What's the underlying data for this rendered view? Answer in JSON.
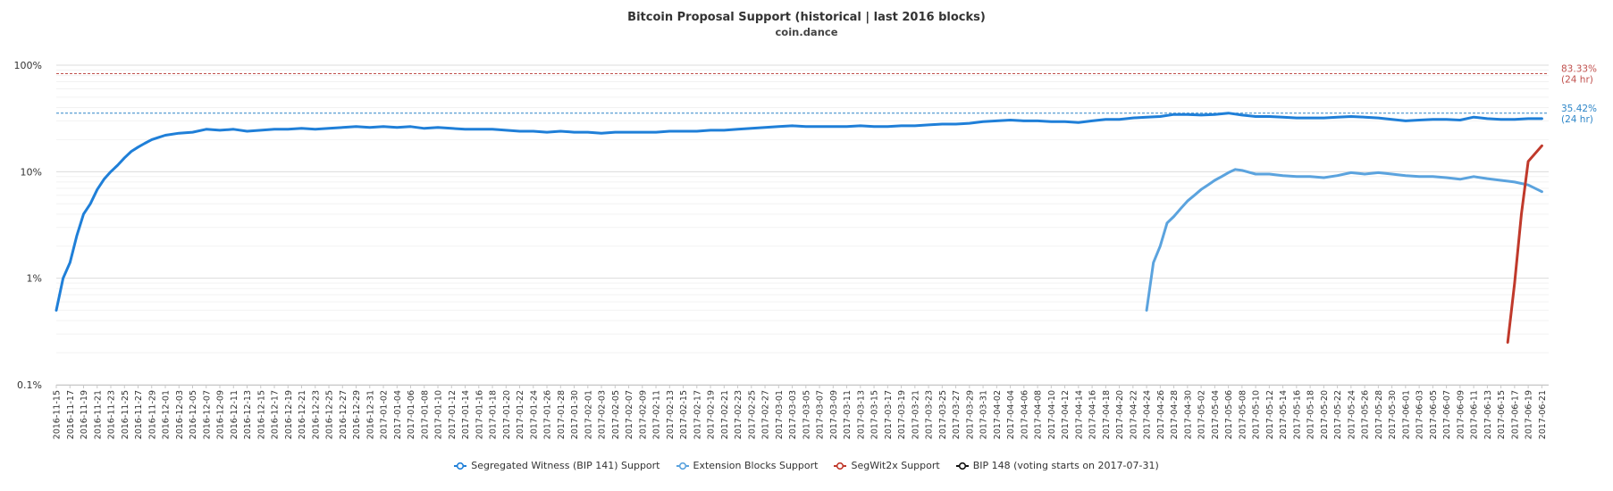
{
  "chart_data": {
    "type": "line",
    "title": "Bitcoin Proposal Support (historical | last 2016 blocks)",
    "subtitle": "coin.dance",
    "y_scale": "log",
    "ylim": [
      0.1,
      100
    ],
    "y_ticks": [
      "0.1%",
      "1%",
      "10%",
      "100%"
    ],
    "x_start": "2016-11-15",
    "x_end": "2017-06-22",
    "x_tick_labels": [
      "2016-11-15",
      "2016-11-17",
      "2016-11-19",
      "2016-11-21",
      "2016-11-23",
      "2016-11-25",
      "2016-11-27",
      "2016-11-29",
      "2016-12-01",
      "2016-12-03",
      "2016-12-05",
      "2016-12-07",
      "2016-12-09",
      "2016-12-11",
      "2016-12-13",
      "2016-12-15",
      "2016-12-17",
      "2016-12-19",
      "2016-12-21",
      "2016-12-23",
      "2016-12-25",
      "2016-12-27",
      "2016-12-29",
      "2016-12-31",
      "2017-01-02",
      "2017-01-04",
      "2017-01-06",
      "2017-01-08",
      "2017-01-10",
      "2017-01-12",
      "2017-01-14",
      "2017-01-16",
      "2017-01-18",
      "2017-01-20",
      "2017-01-22",
      "2017-01-24",
      "2017-01-26",
      "2017-01-28",
      "2017-01-30",
      "2017-02-01",
      "2017-02-03",
      "2017-02-05",
      "2017-02-07",
      "2017-02-09",
      "2017-02-11",
      "2017-02-13",
      "2017-02-15",
      "2017-02-17",
      "2017-02-19",
      "2017-02-21",
      "2017-02-23",
      "2017-02-25",
      "2017-02-27",
      "2017-03-01",
      "2017-03-03",
      "2017-03-05",
      "2017-03-07",
      "2017-03-09",
      "2017-03-11",
      "2017-03-13",
      "2017-03-15",
      "2017-03-17",
      "2017-03-19",
      "2017-03-21",
      "2017-03-23",
      "2017-03-25",
      "2017-03-27",
      "2017-03-29",
      "2017-03-31",
      "2017-04-02",
      "2017-04-04",
      "2017-04-06",
      "2017-04-08",
      "2017-04-10",
      "2017-04-12",
      "2017-04-14",
      "2017-04-16",
      "2017-04-18",
      "2017-04-20",
      "2017-04-22",
      "2017-04-24",
      "2017-04-26",
      "2017-04-28",
      "2017-04-30",
      "2017-05-02",
      "2017-05-04",
      "2017-05-06",
      "2017-05-08",
      "2017-05-10",
      "2017-05-12",
      "2017-05-14",
      "2017-05-16",
      "2017-05-18",
      "2017-05-20",
      "2017-05-22",
      "2017-05-24",
      "2017-05-26",
      "2017-05-28",
      "2017-05-30",
      "2017-06-01",
      "2017-06-03",
      "2017-06-05",
      "2017-06-07",
      "2017-06-09",
      "2017-06-11",
      "2017-06-13",
      "2017-06-15",
      "2017-06-17",
      "2017-06-19",
      "2017-06-21"
    ],
    "reference_lines": [
      {
        "value": 83.33,
        "label": "83.33%",
        "sublabel": "(24 hr)",
        "color": "#c0504d"
      },
      {
        "value": 35.42,
        "label": "35.42%",
        "sublabel": "(24 hr)",
        "color": "#2e86c8"
      }
    ],
    "series": [
      {
        "name": "Segregated Witness (BIP 141) Support",
        "color": "#1f7fd8",
        "points": [
          [
            "2016-11-15",
            0.5
          ],
          [
            "2016-11-16",
            1.0
          ],
          [
            "2016-11-17",
            1.4
          ],
          [
            "2016-11-18",
            2.5
          ],
          [
            "2016-11-19",
            4.0
          ],
          [
            "2016-11-20",
            5.0
          ],
          [
            "2016-11-21",
            6.8
          ],
          [
            "2016-11-22",
            8.5
          ],
          [
            "2016-11-23",
            10.0
          ],
          [
            "2016-11-24",
            11.5
          ],
          [
            "2016-11-25",
            13.5
          ],
          [
            "2016-11-26",
            15.5
          ],
          [
            "2016-11-27",
            17.0
          ],
          [
            "2016-11-28",
            18.5
          ],
          [
            "2016-11-29",
            20.0
          ],
          [
            "2016-11-30",
            21.0
          ],
          [
            "2016-12-01",
            22.0
          ],
          [
            "2016-12-03",
            23.0
          ],
          [
            "2016-12-05",
            23.5
          ],
          [
            "2016-12-07",
            25.0
          ],
          [
            "2016-12-09",
            24.5
          ],
          [
            "2016-12-11",
            25.0
          ],
          [
            "2016-12-13",
            24.0
          ],
          [
            "2016-12-15",
            24.5
          ],
          [
            "2016-12-17",
            25.0
          ],
          [
            "2016-12-19",
            25.0
          ],
          [
            "2016-12-21",
            25.5
          ],
          [
            "2016-12-23",
            25.0
          ],
          [
            "2016-12-25",
            25.5
          ],
          [
            "2016-12-27",
            26.0
          ],
          [
            "2016-12-29",
            26.5
          ],
          [
            "2016-12-31",
            26.0
          ],
          [
            "2017-01-02",
            26.5
          ],
          [
            "2017-01-04",
            26.0
          ],
          [
            "2017-01-06",
            26.5
          ],
          [
            "2017-01-08",
            25.5
          ],
          [
            "2017-01-10",
            26.0
          ],
          [
            "2017-01-12",
            25.5
          ],
          [
            "2017-01-14",
            25.0
          ],
          [
            "2017-01-16",
            25.0
          ],
          [
            "2017-01-18",
            25.0
          ],
          [
            "2017-01-20",
            24.5
          ],
          [
            "2017-01-22",
            24.0
          ],
          [
            "2017-01-24",
            24.0
          ],
          [
            "2017-01-26",
            23.5
          ],
          [
            "2017-01-28",
            24.0
          ],
          [
            "2017-01-30",
            23.5
          ],
          [
            "2017-02-01",
            23.5
          ],
          [
            "2017-02-03",
            23.0
          ],
          [
            "2017-02-05",
            23.5
          ],
          [
            "2017-02-07",
            23.5
          ],
          [
            "2017-02-09",
            23.5
          ],
          [
            "2017-02-11",
            23.5
          ],
          [
            "2017-02-13",
            24.0
          ],
          [
            "2017-02-15",
            24.0
          ],
          [
            "2017-02-17",
            24.0
          ],
          [
            "2017-02-19",
            24.5
          ],
          [
            "2017-02-21",
            24.5
          ],
          [
            "2017-02-23",
            25.0
          ],
          [
            "2017-02-25",
            25.5
          ],
          [
            "2017-02-27",
            26.0
          ],
          [
            "2017-03-01",
            26.5
          ],
          [
            "2017-03-03",
            27.0
          ],
          [
            "2017-03-05",
            26.5
          ],
          [
            "2017-03-07",
            26.5
          ],
          [
            "2017-03-09",
            26.5
          ],
          [
            "2017-03-11",
            26.5
          ],
          [
            "2017-03-13",
            27.0
          ],
          [
            "2017-03-15",
            26.5
          ],
          [
            "2017-03-17",
            26.5
          ],
          [
            "2017-03-19",
            27.0
          ],
          [
            "2017-03-21",
            27.0
          ],
          [
            "2017-03-23",
            27.5
          ],
          [
            "2017-03-25",
            28.0
          ],
          [
            "2017-03-27",
            28.0
          ],
          [
            "2017-03-29",
            28.5
          ],
          [
            "2017-03-31",
            29.5
          ],
          [
            "2017-04-02",
            30.0
          ],
          [
            "2017-04-04",
            30.5
          ],
          [
            "2017-04-06",
            30.0
          ],
          [
            "2017-04-08",
            30.0
          ],
          [
            "2017-04-10",
            29.5
          ],
          [
            "2017-04-12",
            29.5
          ],
          [
            "2017-04-14",
            29.0
          ],
          [
            "2017-04-16",
            30.0
          ],
          [
            "2017-04-18",
            31.0
          ],
          [
            "2017-04-20",
            31.0
          ],
          [
            "2017-04-22",
            32.0
          ],
          [
            "2017-04-24",
            32.5
          ],
          [
            "2017-04-26",
            33.0
          ],
          [
            "2017-04-28",
            34.5
          ],
          [
            "2017-04-30",
            34.5
          ],
          [
            "2017-05-02",
            34.0
          ],
          [
            "2017-05-04",
            34.5
          ],
          [
            "2017-05-06",
            35.5
          ],
          [
            "2017-05-08",
            34.0
          ],
          [
            "2017-05-10",
            33.0
          ],
          [
            "2017-05-12",
            33.0
          ],
          [
            "2017-05-14",
            32.5
          ],
          [
            "2017-05-16",
            32.0
          ],
          [
            "2017-05-18",
            32.0
          ],
          [
            "2017-05-20",
            32.0
          ],
          [
            "2017-05-22",
            32.5
          ],
          [
            "2017-05-24",
            33.0
          ],
          [
            "2017-05-26",
            32.5
          ],
          [
            "2017-05-28",
            32.0
          ],
          [
            "2017-05-30",
            31.0
          ],
          [
            "2017-06-01",
            30.0
          ],
          [
            "2017-06-03",
            30.5
          ],
          [
            "2017-06-05",
            31.0
          ],
          [
            "2017-06-07",
            31.0
          ],
          [
            "2017-06-09",
            30.5
          ],
          [
            "2017-06-11",
            32.5
          ],
          [
            "2017-06-13",
            31.5
          ],
          [
            "2017-06-15",
            31.0
          ],
          [
            "2017-06-17",
            31.0
          ],
          [
            "2017-06-19",
            31.5
          ],
          [
            "2017-06-21",
            31.5
          ]
        ]
      },
      {
        "name": "Extension Blocks Support",
        "color": "#5ba3de",
        "points": [
          [
            "2017-04-24",
            0.5
          ],
          [
            "2017-04-25",
            1.4
          ],
          [
            "2017-04-26",
            2.0
          ],
          [
            "2017-04-27",
            3.3
          ],
          [
            "2017-04-28",
            3.8
          ],
          [
            "2017-04-29",
            4.5
          ],
          [
            "2017-04-30",
            5.3
          ],
          [
            "2017-05-01",
            6.0
          ],
          [
            "2017-05-02",
            6.8
          ],
          [
            "2017-05-03",
            7.5
          ],
          [
            "2017-05-04",
            8.3
          ],
          [
            "2017-05-05",
            9.0
          ],
          [
            "2017-05-06",
            9.8
          ],
          [
            "2017-05-07",
            10.5
          ],
          [
            "2017-05-08",
            10.3
          ],
          [
            "2017-05-10",
            9.5
          ],
          [
            "2017-05-12",
            9.5
          ],
          [
            "2017-05-14",
            9.2
          ],
          [
            "2017-05-16",
            9.0
          ],
          [
            "2017-05-18",
            9.0
          ],
          [
            "2017-05-20",
            8.8
          ],
          [
            "2017-05-22",
            9.2
          ],
          [
            "2017-05-24",
            9.8
          ],
          [
            "2017-05-26",
            9.5
          ],
          [
            "2017-05-28",
            9.8
          ],
          [
            "2017-05-30",
            9.5
          ],
          [
            "2017-06-01",
            9.2
          ],
          [
            "2017-06-03",
            9.0
          ],
          [
            "2017-06-05",
            9.0
          ],
          [
            "2017-06-07",
            8.8
          ],
          [
            "2017-06-09",
            8.5
          ],
          [
            "2017-06-11",
            9.0
          ],
          [
            "2017-06-13",
            8.6
          ],
          [
            "2017-06-15",
            8.3
          ],
          [
            "2017-06-17",
            8.0
          ],
          [
            "2017-06-19",
            7.5
          ],
          [
            "2017-06-21",
            6.5
          ]
        ]
      },
      {
        "name": "SegWit2x Support",
        "color": "#c0392b",
        "points": [
          [
            "2017-06-16",
            0.25
          ],
          [
            "2017-06-17",
            0.9
          ],
          [
            "2017-06-18",
            4.0
          ],
          [
            "2017-06-19",
            12.5
          ],
          [
            "2017-06-21",
            17.5
          ]
        ]
      },
      {
        "name": "BIP 148 (voting starts on 2017-07-31)",
        "color": "#111111",
        "points": []
      }
    ]
  }
}
